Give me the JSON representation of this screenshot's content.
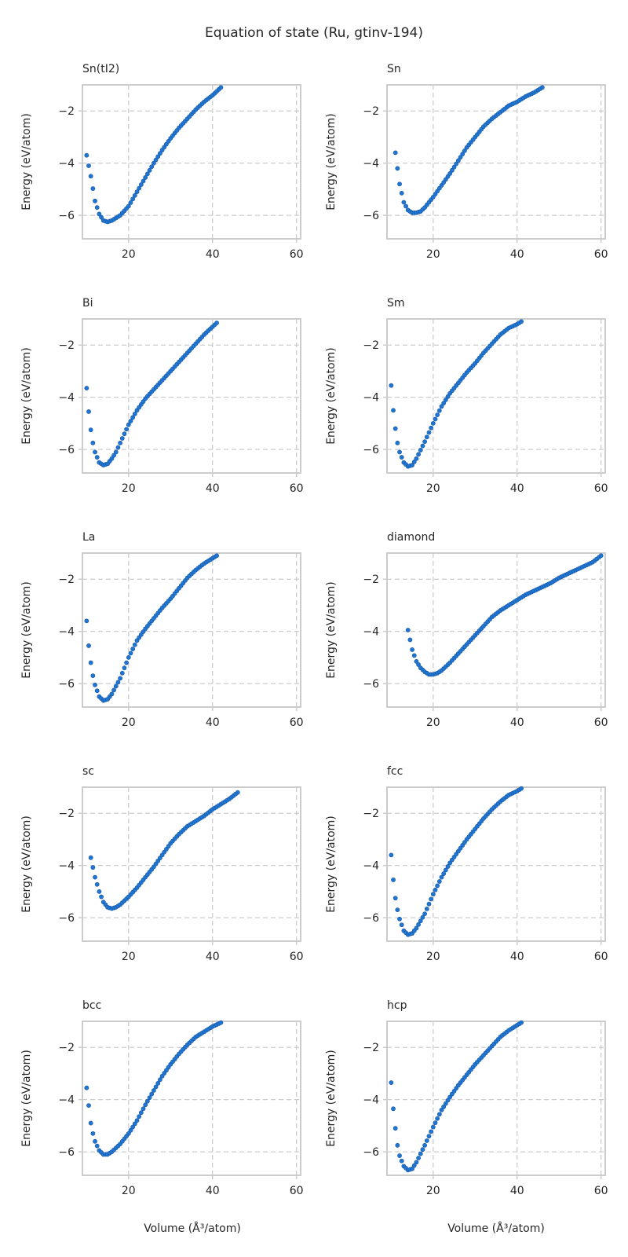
{
  "figure": {
    "title": "Equation of state (Ru, gtinv-194)",
    "xlabel": "Volume (Å³/atom)",
    "ylabel": "Energy (eV/atom)",
    "marker_color": "#2176d2",
    "marker_edge": "#1557a6"
  },
  "chart_data": [
    {
      "type": "scatter",
      "title": "Sn(tI2)",
      "xlim": [
        9,
        61
      ],
      "ylim": [
        -6.9,
        -1.0
      ],
      "xticks": [
        20,
        40,
        60
      ],
      "yticks": [
        -2,
        -4,
        -6
      ],
      "x": [
        10.0,
        11.0,
        12.0,
        13.0,
        14.0,
        15.0,
        16.0,
        18.0,
        20.0,
        22.0,
        24.0,
        26.0,
        28.0,
        30.0,
        32.0,
        34.0,
        36.0,
        38.0,
        40.0,
        42.0
      ],
      "y": [
        -3.7,
        -4.5,
        -5.45,
        -5.95,
        -6.2,
        -6.25,
        -6.2,
        -6.0,
        -5.65,
        -5.1,
        -4.55,
        -4.0,
        -3.5,
        -3.05,
        -2.65,
        -2.3,
        -1.95,
        -1.65,
        -1.4,
        -1.1
      ]
    },
    {
      "type": "scatter",
      "title": "Sn",
      "xlim": [
        9,
        61
      ],
      "ylim": [
        -6.9,
        -1.0
      ],
      "xticks": [
        20,
        40,
        60
      ],
      "yticks": [
        -2,
        -4,
        -6
      ],
      "x": [
        11.0,
        12.0,
        13.0,
        14.0,
        15.0,
        16.0,
        17.0,
        18.0,
        20.0,
        22.0,
        24.0,
        26.0,
        28.0,
        30.0,
        32.0,
        34.0,
        36.0,
        38.0,
        40.0,
        42.0,
        44.0,
        46.0
      ],
      "y": [
        -3.6,
        -4.8,
        -5.5,
        -5.8,
        -5.9,
        -5.9,
        -5.85,
        -5.7,
        -5.3,
        -4.85,
        -4.4,
        -3.9,
        -3.4,
        -3.0,
        -2.6,
        -2.3,
        -2.05,
        -1.8,
        -1.65,
        -1.45,
        -1.3,
        -1.1
      ]
    },
    {
      "type": "scatter",
      "title": "Bi",
      "xlim": [
        9,
        61
      ],
      "ylim": [
        -6.9,
        -1.0
      ],
      "xticks": [
        20,
        40,
        60
      ],
      "yticks": [
        -2,
        -4,
        -6
      ],
      "x": [
        10.0,
        10.5,
        11.0,
        11.5,
        12.0,
        13.0,
        14.0,
        15.0,
        16.0,
        17.0,
        18.0,
        20.0,
        22.0,
        24.0,
        26.0,
        28.0,
        30.0,
        32.0,
        34.0,
        36.0,
        38.0,
        40.0,
        41.0
      ],
      "y": [
        -3.65,
        -4.55,
        -5.25,
        -5.75,
        -6.1,
        -6.5,
        -6.6,
        -6.55,
        -6.35,
        -6.1,
        -5.75,
        -5.05,
        -4.5,
        -4.05,
        -3.7,
        -3.35,
        -3.0,
        -2.65,
        -2.3,
        -1.95,
        -1.6,
        -1.3,
        -1.15
      ]
    },
    {
      "type": "scatter",
      "title": "Sm",
      "xlim": [
        9,
        61
      ],
      "ylim": [
        -6.9,
        -1.0
      ],
      "xticks": [
        20,
        40,
        60
      ],
      "yticks": [
        -2,
        -4,
        -6
      ],
      "x": [
        10.0,
        10.5,
        11.0,
        11.5,
        12.0,
        13.0,
        14.0,
        15.0,
        16.0,
        18.0,
        20.0,
        22.0,
        24.0,
        26.0,
        28.0,
        30.0,
        32.0,
        34.0,
        36.0,
        38.0,
        40.0,
        41.0
      ],
      "y": [
        -3.55,
        -4.5,
        -5.2,
        -5.75,
        -6.1,
        -6.5,
        -6.65,
        -6.6,
        -6.35,
        -5.7,
        -5.0,
        -4.35,
        -3.85,
        -3.45,
        -3.05,
        -2.7,
        -2.3,
        -1.95,
        -1.6,
        -1.35,
        -1.2,
        -1.1
      ]
    },
    {
      "type": "scatter",
      "title": "La",
      "xlim": [
        9,
        61
      ],
      "ylim": [
        -6.9,
        -1.0
      ],
      "xticks": [
        20,
        40,
        60
      ],
      "yticks": [
        -2,
        -4,
        -6
      ],
      "x": [
        10.0,
        10.5,
        11.0,
        11.5,
        12.0,
        13.0,
        14.0,
        15.0,
        16.0,
        18.0,
        20.0,
        22.0,
        24.0,
        26.0,
        28.0,
        30.0,
        32.0,
        34.0,
        36.0,
        38.0,
        40.0,
        41.0
      ],
      "y": [
        -3.6,
        -4.55,
        -5.2,
        -5.7,
        -6.05,
        -6.5,
        -6.65,
        -6.6,
        -6.4,
        -5.8,
        -5.0,
        -4.35,
        -3.9,
        -3.5,
        -3.1,
        -2.75,
        -2.35,
        -1.95,
        -1.65,
        -1.4,
        -1.2,
        -1.1
      ]
    },
    {
      "type": "scatter",
      "title": "diamond",
      "xlim": [
        9,
        61
      ],
      "ylim": [
        -6.9,
        -1.0
      ],
      "xticks": [
        20,
        40,
        60
      ],
      "yticks": [
        -2,
        -4,
        -6
      ],
      "x": [
        14.0,
        15.0,
        16.0,
        17.0,
        18.0,
        19.0,
        20.0,
        21.0,
        22.0,
        24.0,
        26.0,
        28.0,
        30.0,
        32.0,
        34.0,
        36.0,
        38.0,
        40.0,
        42.0,
        44.0,
        46.0,
        48.0,
        50.0,
        52.0,
        54.0,
        56.0,
        58.0,
        60.0
      ],
      "y": [
        -3.95,
        -4.7,
        -5.15,
        -5.4,
        -5.55,
        -5.65,
        -5.65,
        -5.6,
        -5.5,
        -5.2,
        -4.85,
        -4.5,
        -4.15,
        -3.8,
        -3.45,
        -3.2,
        -3.0,
        -2.8,
        -2.6,
        -2.45,
        -2.3,
        -2.15,
        -1.95,
        -1.8,
        -1.65,
        -1.5,
        -1.35,
        -1.1
      ]
    },
    {
      "type": "scatter",
      "title": "sc",
      "xlim": [
        9,
        61
      ],
      "ylim": [
        -6.9,
        -1.0
      ],
      "xticks": [
        20,
        40,
        60
      ],
      "yticks": [
        -2,
        -4,
        -6
      ],
      "x": [
        11.0,
        12.0,
        13.0,
        14.0,
        15.0,
        16.0,
        17.0,
        18.0,
        19.0,
        20.0,
        22.0,
        24.0,
        26.0,
        28.0,
        30.0,
        32.0,
        34.0,
        36.0,
        38.0,
        40.0,
        42.0,
        44.0,
        46.0
      ],
      "y": [
        -3.7,
        -4.45,
        -5.0,
        -5.4,
        -5.6,
        -5.65,
        -5.6,
        -5.5,
        -5.35,
        -5.2,
        -4.85,
        -4.45,
        -4.05,
        -3.6,
        -3.15,
        -2.8,
        -2.5,
        -2.3,
        -2.1,
        -1.85,
        -1.65,
        -1.45,
        -1.2
      ]
    },
    {
      "type": "scatter",
      "title": "fcc",
      "xlim": [
        9,
        61
      ],
      "ylim": [
        -6.9,
        -1.0
      ],
      "xticks": [
        20,
        40,
        60
      ],
      "yticks": [
        -2,
        -4,
        -6
      ],
      "x": [
        10.0,
        10.5,
        11.0,
        11.5,
        12.0,
        13.0,
        14.0,
        15.0,
        16.0,
        18.0,
        20.0,
        22.0,
        24.0,
        26.0,
        28.0,
        30.0,
        32.0,
        34.0,
        36.0,
        38.0,
        40.0,
        41.0
      ],
      "y": [
        -3.6,
        -4.55,
        -5.25,
        -5.7,
        -6.05,
        -6.5,
        -6.65,
        -6.6,
        -6.4,
        -5.85,
        -5.1,
        -4.45,
        -3.9,
        -3.45,
        -3.0,
        -2.6,
        -2.2,
        -1.85,
        -1.55,
        -1.3,
        -1.15,
        -1.05
      ]
    },
    {
      "type": "scatter",
      "title": "bcc",
      "xlim": [
        9,
        61
      ],
      "ylim": [
        -6.9,
        -1.0
      ],
      "xticks": [
        20,
        40,
        60
      ],
      "yticks": [
        -2,
        -4,
        -6
      ],
      "x": [
        10.0,
        11.0,
        11.5,
        12.0,
        13.0,
        14.0,
        15.0,
        16.0,
        18.0,
        20.0,
        22.0,
        24.0,
        26.0,
        28.0,
        30.0,
        32.0,
        34.0,
        36.0,
        38.0,
        40.0,
        42.0
      ],
      "y": [
        -3.55,
        -4.9,
        -5.3,
        -5.6,
        -5.95,
        -6.1,
        -6.1,
        -6.0,
        -5.7,
        -5.3,
        -4.8,
        -4.2,
        -3.65,
        -3.1,
        -2.65,
        -2.25,
        -1.9,
        -1.6,
        -1.4,
        -1.2,
        -1.05
      ]
    },
    {
      "type": "scatter",
      "title": "hcp",
      "xlim": [
        9,
        61
      ],
      "ylim": [
        -6.9,
        -1.0
      ],
      "xticks": [
        20,
        40,
        60
      ],
      "yticks": [
        -2,
        -4,
        -6
      ],
      "x": [
        10.0,
        10.5,
        11.0,
        11.5,
        12.0,
        13.0,
        14.0,
        15.0,
        16.0,
        18.0,
        20.0,
        22.0,
        24.0,
        26.0,
        28.0,
        30.0,
        32.0,
        34.0,
        36.0,
        38.0,
        40.0,
        41.0
      ],
      "y": [
        -3.35,
        -4.35,
        -5.1,
        -5.75,
        -6.15,
        -6.55,
        -6.7,
        -6.65,
        -6.4,
        -5.75,
        -5.05,
        -4.4,
        -3.9,
        -3.45,
        -3.05,
        -2.65,
        -2.3,
        -1.95,
        -1.6,
        -1.35,
        -1.15,
        -1.05
      ]
    }
  ]
}
